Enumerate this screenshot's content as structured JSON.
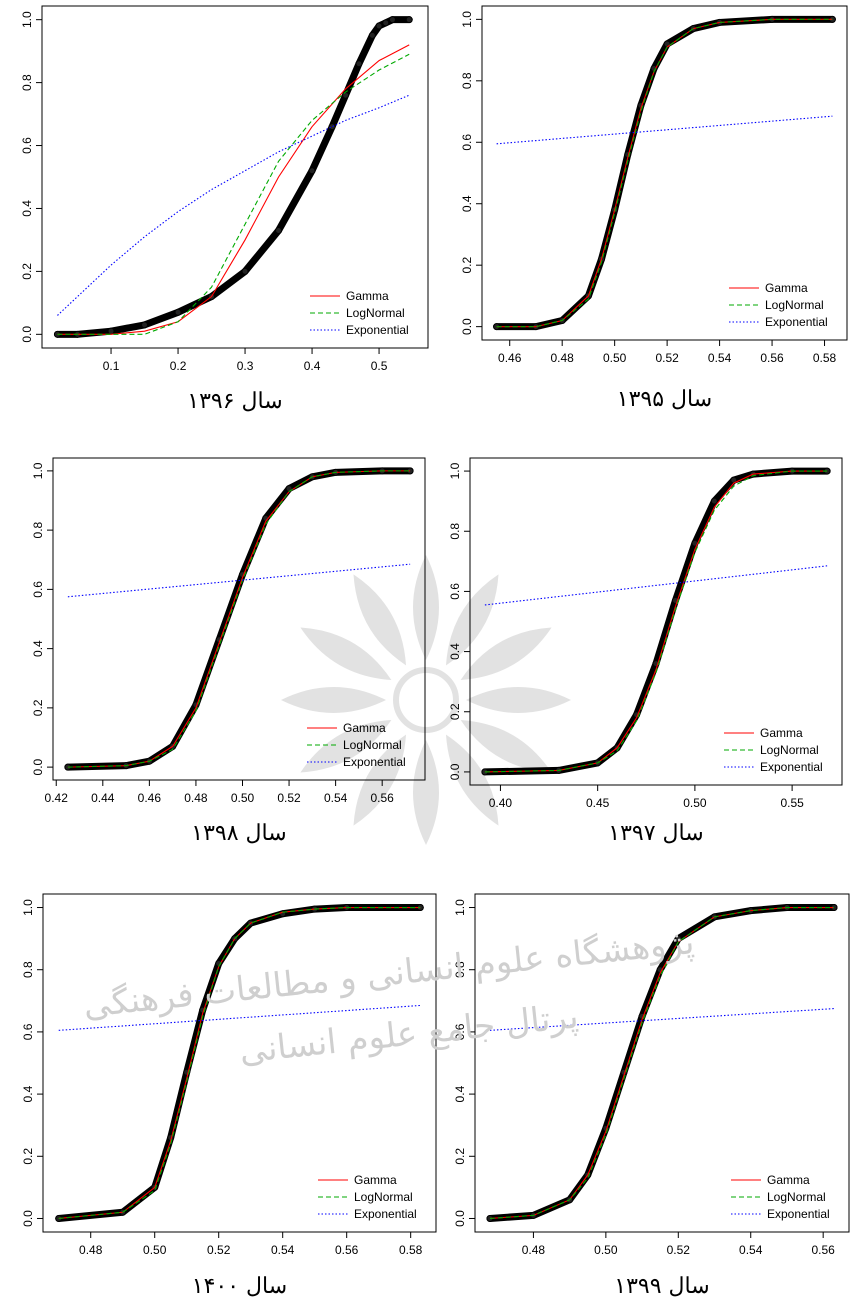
{
  "chart_data": [
    {
      "type": "line",
      "title": "سال ۱۳۹۶",
      "xlim": [
        0.02,
        0.55
      ],
      "ylim": [
        0,
        1
      ],
      "xticks": [
        0.1,
        0.2,
        0.3,
        0.4,
        0.5
      ],
      "yticks": [
        0.0,
        0.2,
        0.4,
        0.6,
        0.8,
        1.0
      ],
      "grid": false,
      "legend_position": "bottom-right",
      "legend": [
        "Gamma",
        "LogNormal",
        "Exponential"
      ],
      "colors": {
        "empirical": "#000000",
        "gamma": "#ff0000",
        "lognormal": "#00aa00",
        "exponential": "#0000ff"
      },
      "series": [
        {
          "name": "Gamma",
          "x": [
            0.02,
            0.1,
            0.15,
            0.2,
            0.25,
            0.3,
            0.35,
            0.4,
            0.45,
            0.5,
            0.545
          ],
          "y": [
            0.0,
            0.0,
            0.01,
            0.04,
            0.12,
            0.3,
            0.5,
            0.66,
            0.78,
            0.87,
            0.92
          ]
        },
        {
          "name": "LogNormal",
          "x": [
            0.02,
            0.1,
            0.15,
            0.2,
            0.25,
            0.3,
            0.35,
            0.4,
            0.45,
            0.5,
            0.545
          ],
          "y": [
            0.0,
            0.0,
            0.0,
            0.04,
            0.15,
            0.35,
            0.55,
            0.68,
            0.77,
            0.84,
            0.89
          ]
        },
        {
          "name": "Exponential",
          "x": [
            0.02,
            0.1,
            0.15,
            0.2,
            0.25,
            0.3,
            0.35,
            0.4,
            0.45,
            0.5,
            0.545
          ],
          "y": [
            0.06,
            0.22,
            0.31,
            0.39,
            0.46,
            0.52,
            0.58,
            0.63,
            0.68,
            0.72,
            0.76
          ]
        },
        {
          "name": "",
          "x": [
            0.02,
            0.05,
            0.1,
            0.15,
            0.2,
            0.25,
            0.3,
            0.35,
            0.4,
            0.43,
            0.45,
            0.47,
            0.49,
            0.5,
            0.51,
            0.52,
            0.545
          ],
          "y": [
            0.0,
            0.0,
            0.01,
            0.03,
            0.07,
            0.12,
            0.2,
            0.33,
            0.52,
            0.66,
            0.76,
            0.86,
            0.95,
            0.98,
            0.99,
            1.0,
            1.0
          ]
        }
      ]
    },
    {
      "type": "line",
      "title": "سال ۱۳۹۵",
      "xlim": [
        0.455,
        0.583
      ],
      "ylim": [
        0,
        1
      ],
      "xticks": [
        0.46,
        0.48,
        0.5,
        0.52,
        0.54,
        0.56,
        0.58
      ],
      "yticks": [
        0.0,
        0.2,
        0.4,
        0.6,
        0.8,
        1.0
      ],
      "grid": false,
      "legend_position": "bottom-right",
      "legend": [
        "Gamma",
        "LogNormal",
        "Exponential"
      ],
      "colors": {
        "empirical": "#000000",
        "gamma": "#ff0000",
        "lognormal": "#00aa00",
        "exponential": "#0000ff"
      },
      "series": [
        {
          "name": "Gamma",
          "x": [
            0.455,
            0.47,
            0.48,
            0.49,
            0.495,
            0.5,
            0.505,
            0.51,
            0.515,
            0.52,
            0.53,
            0.54,
            0.56,
            0.583
          ],
          "y": [
            0.0,
            0.0,
            0.02,
            0.1,
            0.22,
            0.38,
            0.55,
            0.71,
            0.83,
            0.91,
            0.97,
            0.99,
            1.0,
            1.0
          ]
        },
        {
          "name": "LogNormal",
          "x": [
            0.455,
            0.47,
            0.48,
            0.49,
            0.495,
            0.5,
            0.505,
            0.51,
            0.515,
            0.52,
            0.53,
            0.54,
            0.56,
            0.583
          ],
          "y": [
            0.0,
            0.0,
            0.02,
            0.09,
            0.21,
            0.37,
            0.54,
            0.7,
            0.83,
            0.91,
            0.97,
            0.99,
            1.0,
            1.0
          ]
        },
        {
          "name": "Exponential",
          "x": [
            0.455,
            0.583
          ],
          "y": [
            0.595,
            0.685
          ]
        },
        {
          "name": "",
          "x": [
            0.455,
            0.47,
            0.48,
            0.49,
            0.495,
            0.5,
            0.505,
            0.51,
            0.515,
            0.52,
            0.53,
            0.54,
            0.56,
            0.583
          ],
          "y": [
            0.0,
            0.0,
            0.02,
            0.1,
            0.22,
            0.38,
            0.56,
            0.72,
            0.84,
            0.92,
            0.97,
            0.99,
            1.0,
            1.0
          ]
        }
      ]
    },
    {
      "type": "line",
      "title": "سال ۱۳۹۸",
      "xlim": [
        0.425,
        0.572
      ],
      "ylim": [
        0,
        1
      ],
      "xticks": [
        0.42,
        0.44,
        0.46,
        0.48,
        0.5,
        0.52,
        0.54,
        0.56
      ],
      "yticks": [
        0.0,
        0.2,
        0.4,
        0.6,
        0.8,
        1.0
      ],
      "grid": false,
      "legend_position": "bottom-right",
      "legend": [
        "Gamma",
        "LogNormal",
        "Exponential"
      ],
      "colors": {
        "empirical": "#000000",
        "gamma": "#ff0000",
        "lognormal": "#00aa00",
        "exponential": "#0000ff"
      },
      "series": [
        {
          "name": "Gamma",
          "x": [
            0.425,
            0.45,
            0.46,
            0.47,
            0.48,
            0.49,
            0.5,
            0.51,
            0.52,
            0.53,
            0.54,
            0.56,
            0.572
          ],
          "y": [
            0.0,
            0.005,
            0.02,
            0.07,
            0.2,
            0.42,
            0.64,
            0.83,
            0.93,
            0.98,
            0.995,
            1.0,
            1.0
          ]
        },
        {
          "name": "LogNormal",
          "x": [
            0.425,
            0.45,
            0.46,
            0.47,
            0.48,
            0.49,
            0.5,
            0.51,
            0.52,
            0.53,
            0.54,
            0.56,
            0.572
          ],
          "y": [
            0.0,
            0.005,
            0.02,
            0.06,
            0.19,
            0.41,
            0.63,
            0.82,
            0.93,
            0.98,
            0.995,
            1.0,
            1.0
          ]
        },
        {
          "name": "Exponential",
          "x": [
            0.425,
            0.572
          ],
          "y": [
            0.575,
            0.685
          ]
        },
        {
          "name": "",
          "x": [
            0.425,
            0.45,
            0.46,
            0.47,
            0.48,
            0.49,
            0.5,
            0.51,
            0.52,
            0.53,
            0.54,
            0.56,
            0.572
          ],
          "y": [
            0.0,
            0.005,
            0.02,
            0.07,
            0.21,
            0.43,
            0.65,
            0.84,
            0.94,
            0.98,
            0.995,
            1.0,
            1.0
          ]
        }
      ]
    },
    {
      "type": "line",
      "title": "سال ۱۳۹۷",
      "xlim": [
        0.392,
        0.568
      ],
      "ylim": [
        0,
        1
      ],
      "xticks": [
        0.4,
        0.45,
        0.5,
        0.55
      ],
      "yticks": [
        0.0,
        0.2,
        0.4,
        0.6,
        0.8,
        1.0
      ],
      "grid": false,
      "legend_position": "bottom-right",
      "legend": [
        "Gamma",
        "LogNormal",
        "Exponential"
      ],
      "colors": {
        "empirical": "#000000",
        "gamma": "#ff0000",
        "lognormal": "#00aa00",
        "exponential": "#0000ff"
      },
      "series": [
        {
          "name": "Gamma",
          "x": [
            0.392,
            0.43,
            0.45,
            0.46,
            0.47,
            0.48,
            0.49,
            0.5,
            0.51,
            0.52,
            0.53,
            0.55,
            0.568
          ],
          "y": [
            0.0,
            0.005,
            0.03,
            0.08,
            0.18,
            0.34,
            0.55,
            0.74,
            0.88,
            0.96,
            0.99,
            1.0,
            1.0
          ]
        },
        {
          "name": "LogNormal",
          "x": [
            0.392,
            0.43,
            0.45,
            0.46,
            0.47,
            0.48,
            0.49,
            0.5,
            0.51,
            0.52,
            0.53,
            0.55,
            0.568
          ],
          "y": [
            0.0,
            0.005,
            0.03,
            0.07,
            0.17,
            0.33,
            0.54,
            0.73,
            0.87,
            0.95,
            0.985,
            1.0,
            1.0
          ]
        },
        {
          "name": "Exponential",
          "x": [
            0.392,
            0.568
          ],
          "y": [
            0.555,
            0.685
          ]
        },
        {
          "name": "",
          "x": [
            0.392,
            0.43,
            0.45,
            0.46,
            0.47,
            0.48,
            0.49,
            0.5,
            0.51,
            0.52,
            0.53,
            0.55,
            0.568
          ],
          "y": [
            0.0,
            0.005,
            0.03,
            0.08,
            0.19,
            0.36,
            0.57,
            0.76,
            0.9,
            0.97,
            0.99,
            1.0,
            1.0
          ]
        }
      ]
    },
    {
      "type": "line",
      "title": "سال ۱۴۰۰",
      "xlim": [
        0.47,
        0.583
      ],
      "ylim": [
        0,
        1
      ],
      "xticks": [
        0.48,
        0.5,
        0.52,
        0.54,
        0.56,
        0.58
      ],
      "yticks": [
        0.0,
        0.2,
        0.4,
        0.6,
        0.8,
        1.0
      ],
      "grid": false,
      "legend_position": "bottom-right",
      "legend": [
        "Gamma",
        "LogNormal",
        "Exponential"
      ],
      "colors": {
        "empirical": "#000000",
        "gamma": "#ff0000",
        "lognormal": "#00aa00",
        "exponential": "#0000ff"
      },
      "series": [
        {
          "name": "Gamma",
          "x": [
            0.47,
            0.49,
            0.5,
            0.505,
            0.51,
            0.515,
            0.52,
            0.525,
            0.53,
            0.54,
            0.55,
            0.56,
            0.583
          ],
          "y": [
            0.0,
            0.02,
            0.1,
            0.25,
            0.45,
            0.66,
            0.81,
            0.9,
            0.95,
            0.985,
            0.995,
            1.0,
            1.0
          ]
        },
        {
          "name": "LogNormal",
          "x": [
            0.47,
            0.49,
            0.5,
            0.505,
            0.51,
            0.515,
            0.52,
            0.525,
            0.53,
            0.54,
            0.55,
            0.56,
            0.583
          ],
          "y": [
            0.0,
            0.02,
            0.09,
            0.24,
            0.44,
            0.65,
            0.81,
            0.9,
            0.95,
            0.985,
            0.995,
            1.0,
            1.0
          ]
        },
        {
          "name": "Exponential",
          "x": [
            0.47,
            0.583
          ],
          "y": [
            0.605,
            0.685
          ]
        },
        {
          "name": "",
          "x": [
            0.47,
            0.49,
            0.5,
            0.505,
            0.51,
            0.515,
            0.52,
            0.525,
            0.53,
            0.54,
            0.55,
            0.56,
            0.583
          ],
          "y": [
            0.0,
            0.02,
            0.1,
            0.26,
            0.47,
            0.67,
            0.82,
            0.9,
            0.95,
            0.98,
            0.995,
            1.0,
            1.0
          ]
        }
      ]
    },
    {
      "type": "line",
      "title": "سال ۱۳۹۹",
      "xlim": [
        0.468,
        0.563
      ],
      "ylim": [
        0,
        1
      ],
      "xticks": [
        0.48,
        0.5,
        0.52,
        0.54,
        0.56
      ],
      "yticks": [
        0.0,
        0.2,
        0.4,
        0.6,
        0.8,
        1.0
      ],
      "grid": false,
      "legend_position": "bottom-right",
      "legend": [
        "Gamma",
        "LogNormal",
        "Exponential"
      ],
      "colors": {
        "empirical": "#000000",
        "gamma": "#ff0000",
        "lognormal": "#00aa00",
        "exponential": "#0000ff"
      },
      "series": [
        {
          "name": "Gamma",
          "x": [
            0.468,
            0.48,
            0.49,
            0.495,
            0.5,
            0.505,
            0.51,
            0.515,
            0.52,
            0.53,
            0.54,
            0.55,
            0.563
          ],
          "y": [
            0.0,
            0.01,
            0.06,
            0.14,
            0.28,
            0.46,
            0.64,
            0.79,
            0.89,
            0.97,
            0.99,
            1.0,
            1.0
          ]
        },
        {
          "name": "LogNormal",
          "x": [
            0.468,
            0.48,
            0.49,
            0.495,
            0.5,
            0.505,
            0.51,
            0.515,
            0.52,
            0.53,
            0.54,
            0.55,
            0.563
          ],
          "y": [
            0.0,
            0.01,
            0.06,
            0.13,
            0.27,
            0.45,
            0.63,
            0.78,
            0.89,
            0.97,
            0.99,
            1.0,
            1.0
          ]
        },
        {
          "name": "Exponential",
          "x": [
            0.468,
            0.563
          ],
          "y": [
            0.605,
            0.675
          ]
        },
        {
          "name": "",
          "x": [
            0.468,
            0.48,
            0.49,
            0.495,
            0.5,
            0.505,
            0.51,
            0.515,
            0.52,
            0.53,
            0.54,
            0.55,
            0.563
          ],
          "y": [
            0.0,
            0.01,
            0.06,
            0.14,
            0.29,
            0.47,
            0.65,
            0.8,
            0.9,
            0.97,
            0.99,
            1.0,
            1.0
          ]
        }
      ]
    }
  ],
  "watermark": {
    "line1": "پژوهشگاه علوم انسانی و مطالعات فرهنگی",
    "line2": "پرتال جامع علوم انسانی"
  }
}
